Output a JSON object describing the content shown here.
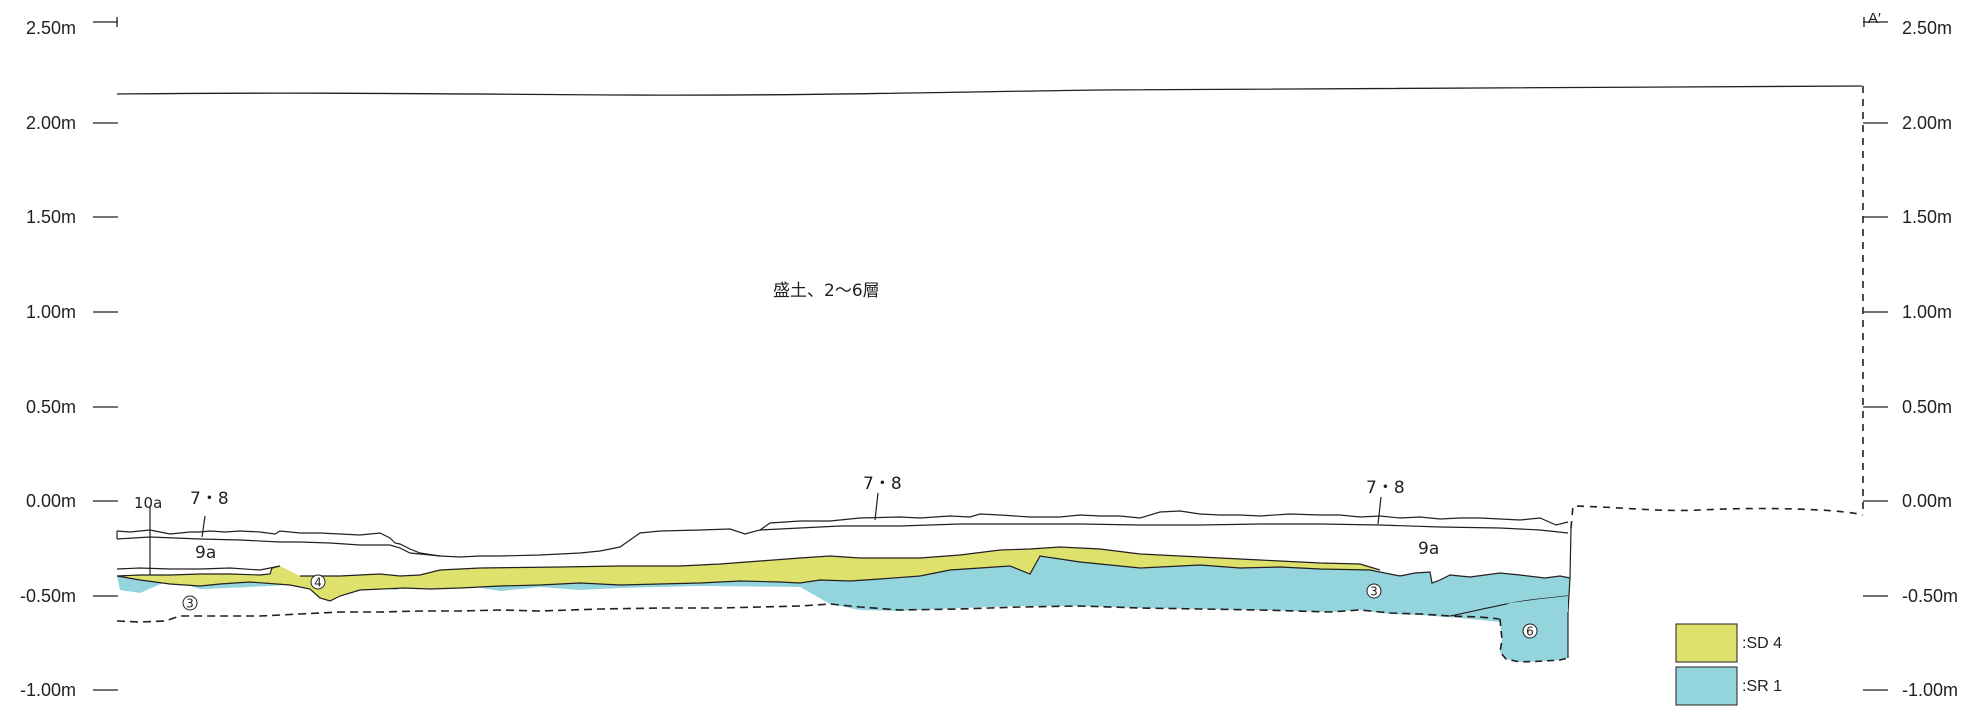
{
  "axis": {
    "ticks": [
      "2.50m",
      "2.00m",
      "1.50m",
      "1.00m",
      "0.50m",
      "0.00m",
      "-0.50m",
      "-1.00m"
    ],
    "section_end_label": "A′"
  },
  "layers": {
    "fill_label": "盛土、2～6層",
    "layer_78_label": "7・8",
    "layer_9a_label": "9a",
    "layer_10a_label": "10a",
    "circle_3": "3",
    "circle_4": "4",
    "circle_6": "6"
  },
  "legend": [
    {
      "label": ":SD 4",
      "color": "#dee26d"
    },
    {
      "label": ":SR 1",
      "color": "#94d4dc"
    }
  ],
  "colors": {
    "sd4": "#dee26d",
    "sr1": "#94d4dc",
    "line": "#231f20"
  }
}
